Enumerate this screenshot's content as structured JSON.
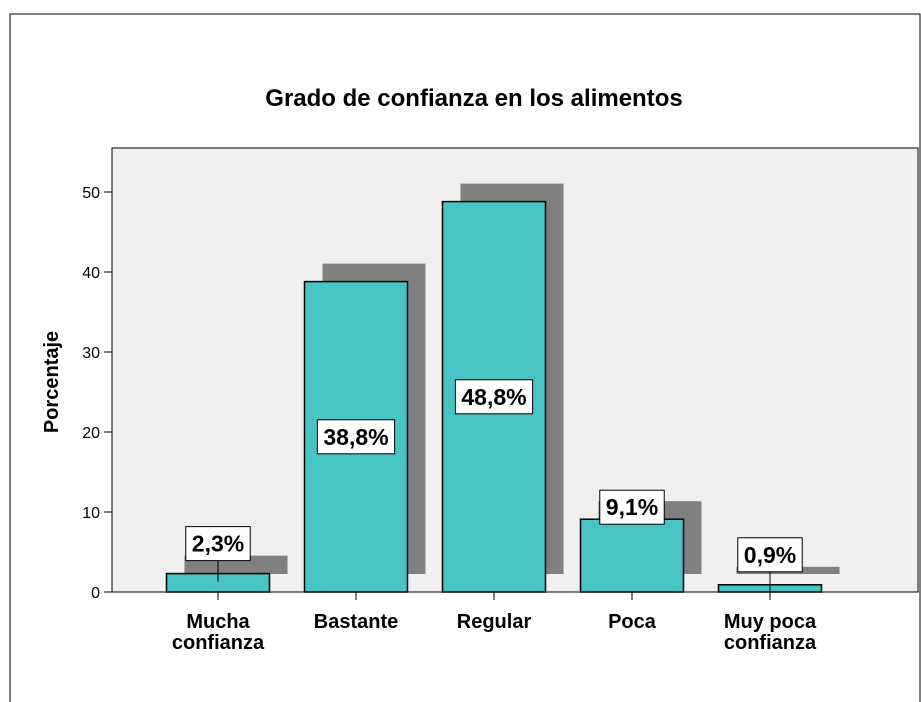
{
  "chart_data": {
    "type": "bar",
    "title": "Grado de confianza en los alimentos",
    "y_label": "Porcentaje",
    "categories": [
      "Mucha\nconfianza",
      "Bastante",
      "Regular",
      "Poca",
      "Muy poca\nconfianza"
    ],
    "values": [
      2.3,
      38.8,
      48.8,
      9.1,
      0.9
    ],
    "value_labels": [
      "2,3%",
      "38,8%",
      "48,8%",
      "9,1%",
      "0,9%"
    ],
    "color": "#48c4c4",
    "shadow_color": "#808080",
    "ylim": [
      0,
      55.5
    ],
    "yticks": [
      0,
      10,
      20,
      30,
      40,
      50
    ]
  }
}
